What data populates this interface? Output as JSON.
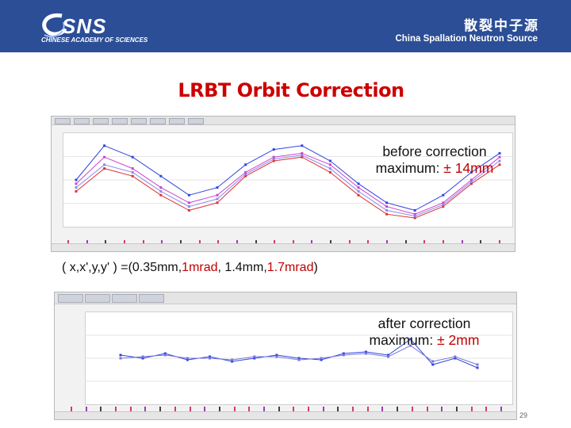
{
  "header": {
    "logo_text": "SNS",
    "logo_subtitle": "CHINESE ACADEMY OF SCIENCES",
    "title_cn": "散裂中子源",
    "title_en": "China Spallation Neutron Source"
  },
  "slide": {
    "title": "LRBT Orbit Correction",
    "page_number": "29"
  },
  "before": {
    "line1": "before correction",
    "line2_prefix": "maximum: ",
    "line2_value": "± 14mm",
    "screenshot": {
      "tabs": [
        "",
        "",
        "",
        "",
        "",
        "",
        "",
        ""
      ],
      "series_colors": [
        "#3344dd",
        "#dd3333",
        "#cc44cc",
        "#8888ee"
      ],
      "series": [
        {
          "values": [
            0,
            0.9,
            0.6,
            0.1,
            -0.4,
            -0.2,
            0.4,
            0.8,
            0.9,
            0.5,
            -0.1,
            -0.6,
            -0.8,
            -0.4,
            0.2,
            0.7
          ]
        },
        {
          "values": [
            -0.3,
            0.3,
            0.1,
            -0.4,
            -0.8,
            -0.6,
            0.1,
            0.5,
            0.6,
            0.2,
            -0.4,
            -0.9,
            -1.0,
            -0.7,
            -0.1,
            0.4
          ]
        },
        {
          "values": [
            -0.1,
            0.6,
            0.3,
            -0.2,
            -0.6,
            -0.4,
            0.2,
            0.6,
            0.7,
            0.4,
            -0.2,
            -0.7,
            -0.9,
            -0.6,
            0.0,
            0.6
          ]
        },
        {
          "values": [
            -0.2,
            0.4,
            0.2,
            -0.3,
            -0.7,
            -0.5,
            0.15,
            0.55,
            0.65,
            0.3,
            -0.3,
            -0.8,
            -0.95,
            -0.65,
            -0.05,
            0.5
          ]
        }
      ]
    }
  },
  "params": {
    "prefix": "( x,x',y,y' ) =(0.35mm,",
    "v1": "1mrad",
    "sep1": ", 1.4mm,",
    "v2": "1.7mrad",
    "suffix": ")"
  },
  "after": {
    "line1": "after correction",
    "line2_prefix": "maximum: ",
    "line2_value": "± 2mm",
    "screenshot": {
      "series_colors": [
        "#3344dd",
        "#7777dd"
      ],
      "series": [
        {
          "values": [
            0.1,
            0.0,
            0.15,
            -0.05,
            0.05,
            -0.1,
            0.0,
            0.1,
            0.0,
            -0.05,
            0.15,
            0.2,
            0.1,
            0.6,
            -0.2,
            0.0,
            -0.3
          ]
        },
        {
          "values": [
            0.0,
            0.05,
            0.1,
            0.0,
            0.0,
            -0.05,
            0.05,
            0.05,
            -0.05,
            0.0,
            0.1,
            0.15,
            0.05,
            0.4,
            -0.1,
            0.05,
            -0.2
          ]
        }
      ]
    }
  }
}
